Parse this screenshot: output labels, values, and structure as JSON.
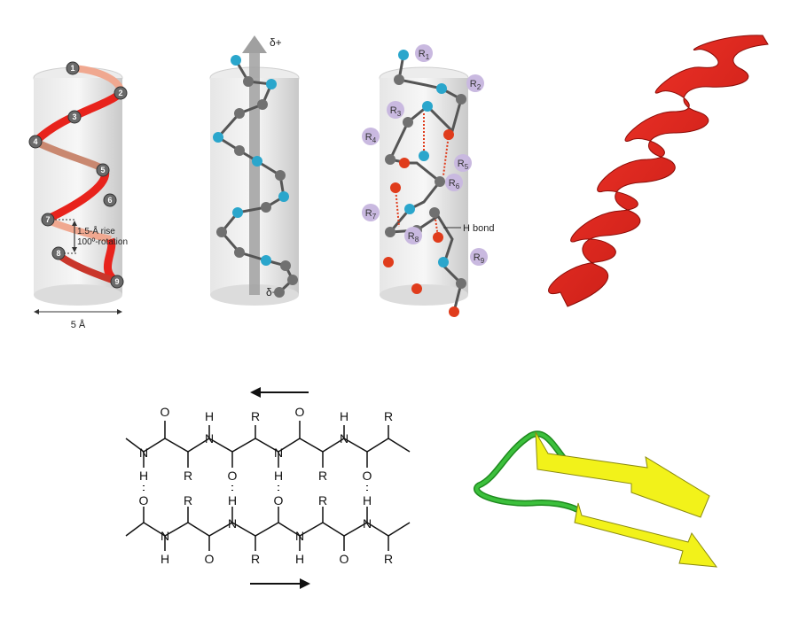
{
  "helix_model": {
    "residue_numbers": [
      "1",
      "2",
      "3",
      "4",
      "5",
      "6",
      "7",
      "8",
      "9"
    ],
    "rise_label": "1.5-Å rise",
    "rotation_label": "100º-rotation",
    "diameter_label": "5 Å"
  },
  "dipole_model": {
    "positive_label": "δ+",
    "negative_label": "δ−"
  },
  "hbond_model": {
    "r_labels": [
      "R1",
      "R2",
      "R3",
      "R4",
      "R5",
      "R6",
      "R7",
      "R8",
      "R9"
    ],
    "r_main": "R",
    "r_subs": [
      "1",
      "2",
      "3",
      "4",
      "5",
      "6",
      "7",
      "8",
      "9"
    ],
    "hbond_label": "H bond"
  },
  "sheet_diagram": {
    "atoms": {
      "O": "O",
      "H": "H",
      "R": "R",
      "N": "N"
    }
  },
  "colors": {
    "helix_red": "#e8231c",
    "carbon_grey": "#707070",
    "nitrogen_blue": "#2aa6cc",
    "oxygen_red": "#e03c1c",
    "r_group_purple": "#c9b9e0",
    "strand_yellow": "#f2f21a",
    "loop_green": "#3cc03c"
  }
}
